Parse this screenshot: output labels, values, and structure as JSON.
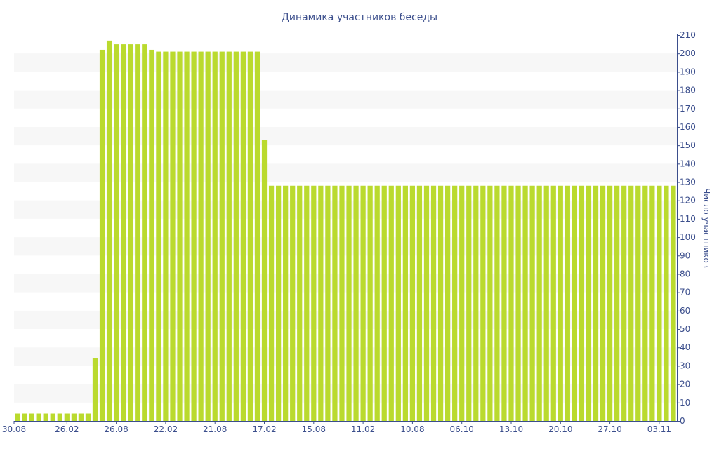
{
  "chart_data": {
    "type": "bar",
    "title": "Динамика участников беседы",
    "xlabel": "",
    "ylabel": "Число участников",
    "ylim": [
      0,
      210
    ],
    "yticks": [
      0,
      10,
      20,
      30,
      40,
      50,
      60,
      70,
      80,
      90,
      100,
      110,
      120,
      130,
      140,
      150,
      160,
      170,
      180,
      190,
      200,
      210
    ],
    "grid": "alternating horizontal bands",
    "y_axis_position": "right",
    "bar_color": "#bada2e",
    "band_color": "#f7f7f7",
    "text_color": "#3b4e8c",
    "x_tick_labels": [
      "30.08",
      "26.02",
      "26.08",
      "22.02",
      "21.08",
      "17.02",
      "15.08",
      "11.02",
      "10.08",
      "06.10",
      "13.10",
      "20.10",
      "27.10",
      "03.11"
    ],
    "x_tick_positions": [
      0,
      7,
      14,
      21,
      28,
      35,
      42,
      49,
      56,
      63,
      70,
      77,
      84,
      91
    ],
    "values": [
      4,
      4,
      4,
      4,
      4,
      4,
      4,
      4,
      4,
      4,
      4,
      34,
      202,
      207,
      205,
      205,
      205,
      205,
      205,
      202,
      201,
      201,
      201,
      201,
      201,
      201,
      201,
      201,
      201,
      201,
      201,
      201,
      201,
      201,
      201,
      153,
      128,
      128,
      128,
      128,
      128,
      128,
      128,
      128,
      128,
      128,
      128,
      128,
      128,
      128,
      128,
      128,
      128,
      128,
      128,
      128,
      128,
      128,
      128,
      128,
      128,
      128,
      128,
      128,
      128,
      128,
      128,
      128,
      128,
      128,
      128,
      128,
      128,
      128,
      128,
      128,
      128,
      128,
      128,
      128,
      128,
      128,
      128,
      128,
      128,
      128,
      128,
      128,
      128,
      128,
      128,
      128,
      128,
      128
    ]
  }
}
